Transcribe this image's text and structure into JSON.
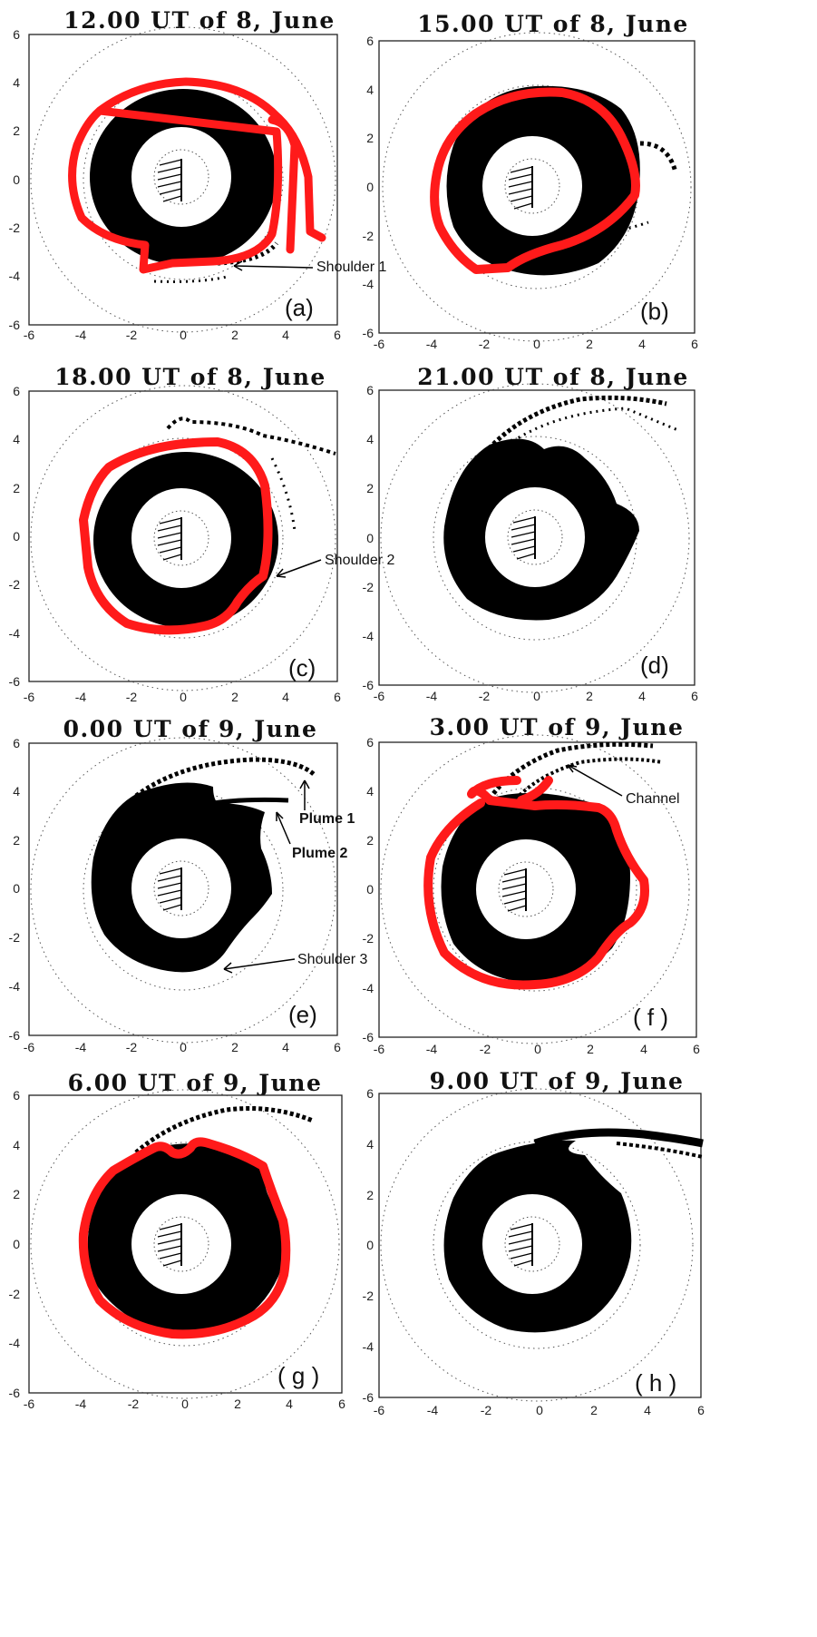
{
  "figure": {
    "panels": [
      {
        "id": "a",
        "title": "12.00 UT of 8, June",
        "label": "(a)"
      },
      {
        "id": "b",
        "title": "15.00 UT of 8, June",
        "label": "(b)"
      },
      {
        "id": "c",
        "title": "18.00 UT of 8, June",
        "label": "(c)"
      },
      {
        "id": "d",
        "title": "21.00 UT of 8, June",
        "label": "(d)"
      },
      {
        "id": "e",
        "title": "0.00 UT of 9, June",
        "label": "(e)"
      },
      {
        "id": "f",
        "title": "3.00 UT of 9, June",
        "label": "( f )"
      },
      {
        "id": "g",
        "title": "6.00 UT of 9, June",
        "label": "( g )"
      },
      {
        "id": "h",
        "title": "9.00 UT of 9, June",
        "label": "( h )"
      }
    ],
    "tick_labels": [
      "-6",
      "-4",
      "-2",
      "0",
      "2",
      "4",
      "6"
    ],
    "annotations": {
      "shoulder_1": "Shoulder 1",
      "shoulder_2": "Shoulder 2",
      "shoulder_3": "Shoulder 3",
      "plume_1": "Plume 1",
      "plume_2": "Plume 2",
      "channel": "Channel"
    }
  }
}
